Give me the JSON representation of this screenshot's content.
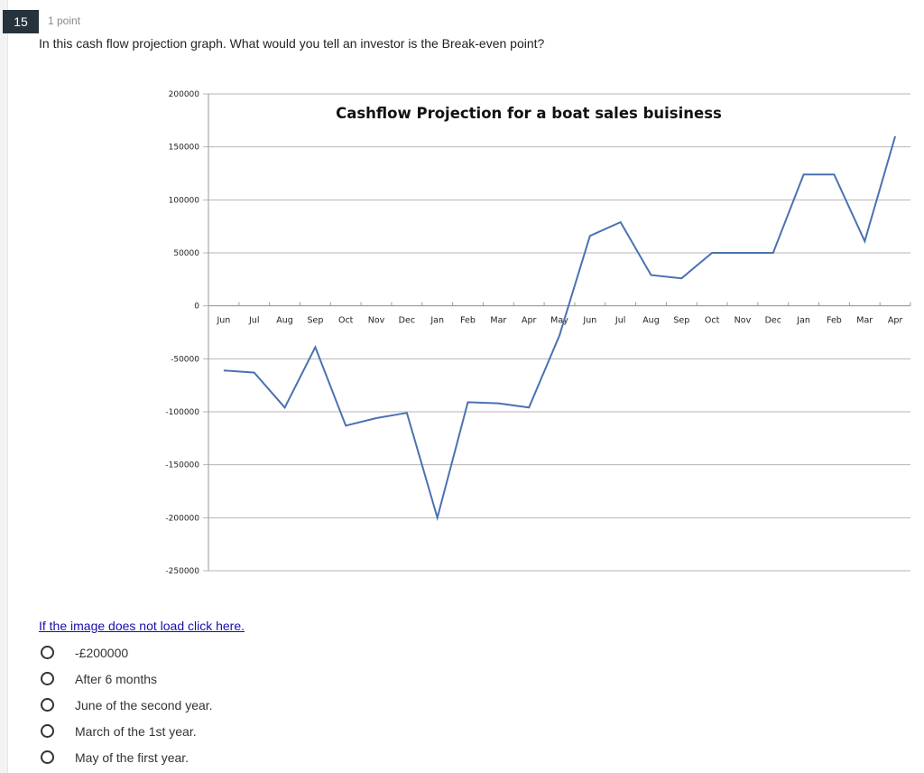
{
  "question": {
    "number": "15",
    "points": "1 point",
    "text": "In this cash flow projection graph. What would you tell an investor is the Break-even point?",
    "image_link": "If the image does not load click here.",
    "options": [
      {
        "label": "-£200000",
        "selected": false
      },
      {
        "label": "After 6 months",
        "selected": false
      },
      {
        "label": "June of the second year.",
        "selected": false
      },
      {
        "label": "March of the 1st year.",
        "selected": false
      },
      {
        "label": "May of the first year.",
        "selected": false
      }
    ]
  },
  "colors": {
    "line": "#4a72b0",
    "grid": "#b5b5b5",
    "badge": "#26333d",
    "link": "#1a0dab"
  },
  "chart_data": {
    "type": "line",
    "title": "Cashflow Projection for a boat sales buisiness",
    "xlabel": "",
    "ylabel": "",
    "ylim": [
      -250000,
      200000
    ],
    "yticks": [
      200000,
      150000,
      100000,
      50000,
      0,
      -50000,
      -100000,
      -150000,
      -200000,
      -250000
    ],
    "ytick_labels": [
      "200000",
      "150000",
      "100000",
      "50000",
      "0",
      "-50000",
      "-100000",
      "-150000",
      "-200000",
      "-250000"
    ],
    "grid": true,
    "legend": null,
    "categories": [
      "Jun",
      "Jul",
      "Aug",
      "Sep",
      "Oct",
      "Nov",
      "Dec",
      "Jan",
      "Feb",
      "Mar",
      "Apr",
      "May",
      "Jun",
      "Jul",
      "Aug",
      "Sep",
      "Oct",
      "Nov",
      "Dec",
      "Jan",
      "Feb",
      "Mar",
      "Apr"
    ],
    "series": [
      {
        "name": "Cashflow",
        "values": [
          -61000,
          -63000,
          -96000,
          -39000,
          -113000,
          -106000,
          -101000,
          -200000,
          -91000,
          -92000,
          -96000,
          -28000,
          66000,
          79000,
          29000,
          26000,
          50000,
          50000,
          50000,
          124000,
          124000,
          61000,
          160000
        ]
      }
    ]
  }
}
